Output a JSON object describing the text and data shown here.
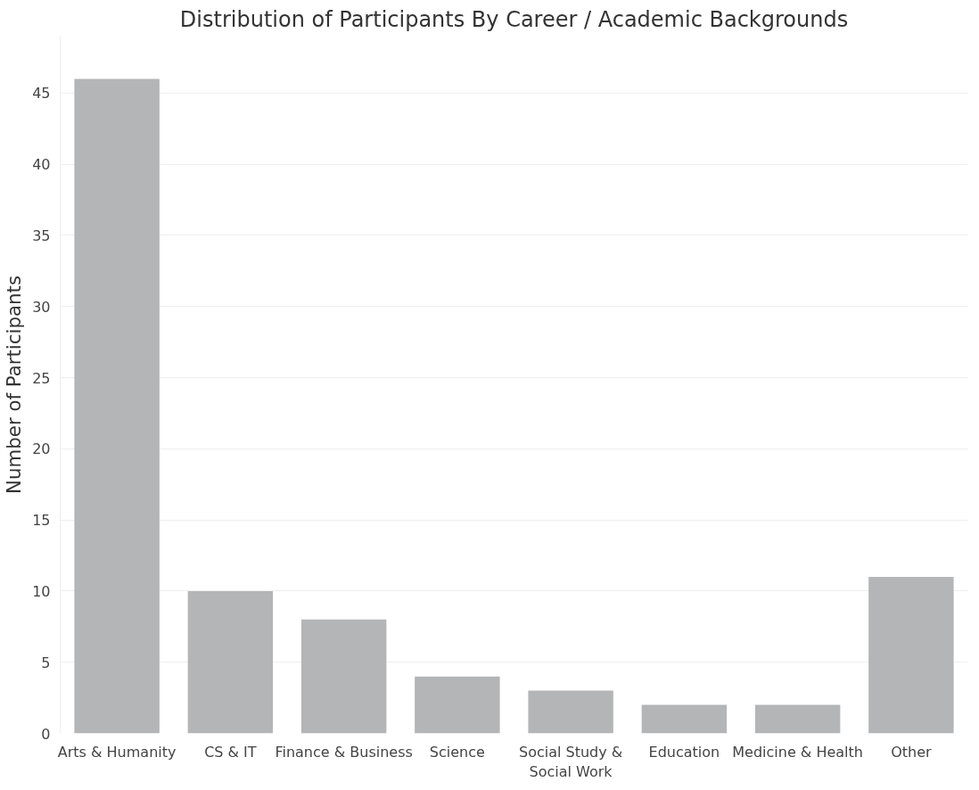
{
  "chart_data": {
    "type": "bar",
    "title": "Distribution of Participants By Career / Academic Backgrounds",
    "ylabel": "Number of Participants",
    "categories": [
      "Arts & Humanity",
      "CS & IT",
      "Finance & Business",
      "Science",
      "Social Study & Social Work",
      "Education",
      "Medicine & Health",
      "Other"
    ],
    "values": [
      46,
      10,
      8,
      4,
      3,
      2,
      2,
      11
    ],
    "color": "#b3b5b6",
    "ylim": [
      0,
      49
    ],
    "yticks": [
      0,
      5,
      10,
      15,
      20,
      25,
      30,
      35,
      40,
      45
    ],
    "grid": "y"
  }
}
